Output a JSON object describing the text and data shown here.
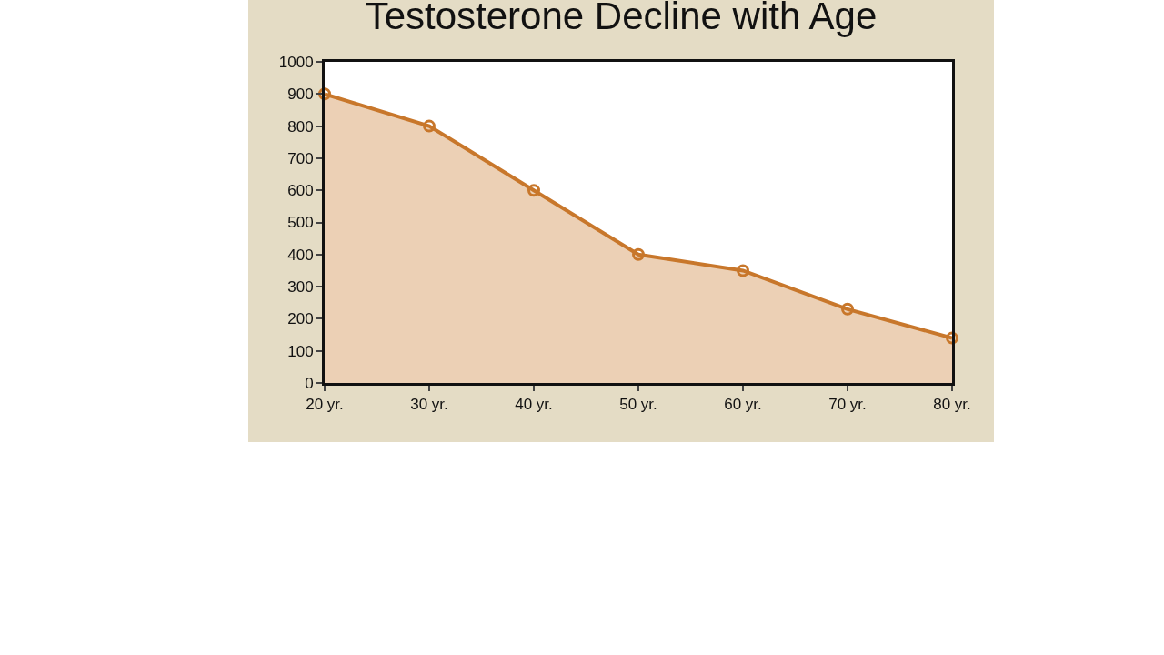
{
  "chart_data": {
    "type": "area",
    "title": "Testosterone Decline with Age",
    "categories": [
      "20 yr.",
      "30 yr.",
      "40 yr.",
      "50 yr.",
      "60 yr.",
      "70 yr.",
      "80 yr."
    ],
    "series": [
      {
        "color": "#c8772b",
        "values": [
          900,
          800,
          600,
          400,
          350,
          230,
          140
        ]
      }
    ],
    "ylim": [
      0,
      1000
    ],
    "yticks": [
      0,
      100,
      200,
      300,
      400,
      500,
      600,
      700,
      800,
      900,
      1000
    ],
    "grid": false,
    "legend": false,
    "marker": "circle",
    "line_style": "solid"
  }
}
